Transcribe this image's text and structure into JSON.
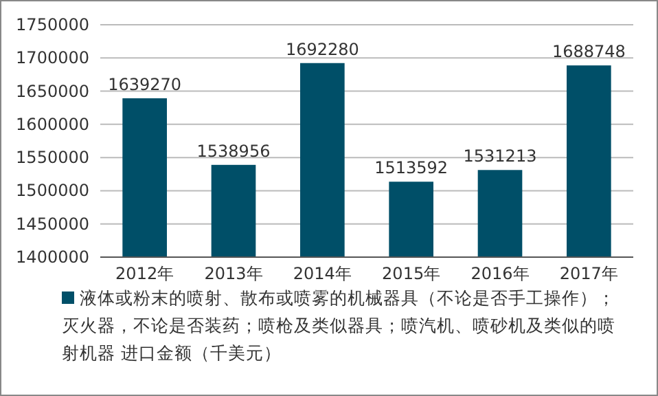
{
  "chart_data": {
    "type": "bar",
    "categories": [
      "2012年",
      "2013年",
      "2014年",
      "2015年",
      "2016年",
      "2017年"
    ],
    "series": [
      {
        "name": "液体或粉末的喷射、散布或喷雾的机械器具（不论是否手工操作）；灭火器，不论是否装药；喷枪及类似器具；喷汽机、喷砂机及类似的喷射机器 进口金额（千美元）",
        "color": "#004f68",
        "values": [
          1639270,
          1538956,
          1692280,
          1513592,
          1531213,
          1688748
        ]
      }
    ],
    "ylim": [
      1400000,
      1750000
    ],
    "yticks": [
      1400000,
      1450000,
      1500000,
      1550000,
      1600000,
      1650000,
      1700000,
      1750000
    ],
    "grid": "y",
    "data_labels": true,
    "legend": "bottom"
  }
}
